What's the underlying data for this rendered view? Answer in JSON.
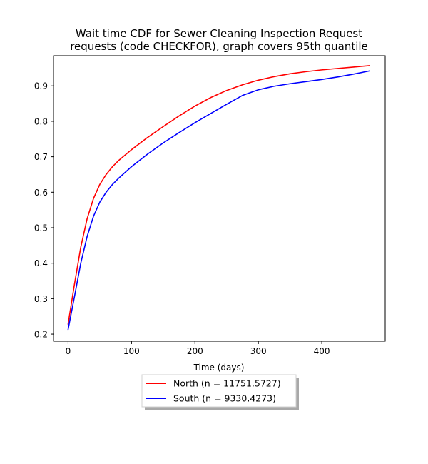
{
  "chart_data": {
    "type": "line",
    "title_lines": [
      "Wait time CDF for Sewer Cleaning Inspection Request",
      "requests (code CHECKFOR), graph covers 95th quantile"
    ],
    "xlabel": "Time (days)",
    "ylabel": "",
    "xlim": [
      -23,
      500
    ],
    "ylim": [
      0.18,
      0.985
    ],
    "xticks": [
      0,
      100,
      200,
      300,
      400
    ],
    "yticks": [
      0.2,
      0.3,
      0.4,
      0.5,
      0.6,
      0.7,
      0.8,
      0.9
    ],
    "grid": false,
    "legend_position": "below plot, centered",
    "series": [
      {
        "name": "North (n = 11751.5727)",
        "color": "#ff0000",
        "x": [
          0,
          10,
          20,
          30,
          40,
          50,
          60,
          70,
          80,
          100,
          125,
          150,
          175,
          200,
          225,
          250,
          275,
          300,
          325,
          350,
          375,
          400,
          425,
          450,
          475
        ],
        "y": [
          0.228,
          0.34,
          0.445,
          0.525,
          0.582,
          0.622,
          0.65,
          0.672,
          0.69,
          0.72,
          0.754,
          0.785,
          0.815,
          0.843,
          0.867,
          0.887,
          0.903,
          0.916,
          0.926,
          0.934,
          0.94,
          0.945,
          0.949,
          0.953,
          0.957
        ]
      },
      {
        "name": "South (n = 9330.4273)",
        "color": "#0000ff",
        "x": [
          0,
          10,
          20,
          30,
          40,
          50,
          60,
          70,
          80,
          100,
          125,
          150,
          175,
          200,
          225,
          250,
          275,
          300,
          325,
          350,
          375,
          400,
          425,
          450,
          475
        ],
        "y": [
          0.213,
          0.305,
          0.4,
          0.475,
          0.532,
          0.572,
          0.6,
          0.622,
          0.64,
          0.672,
          0.707,
          0.739,
          0.768,
          0.796,
          0.822,
          0.848,
          0.873,
          0.889,
          0.899,
          0.906,
          0.912,
          0.918,
          0.925,
          0.933,
          0.942
        ]
      }
    ]
  }
}
